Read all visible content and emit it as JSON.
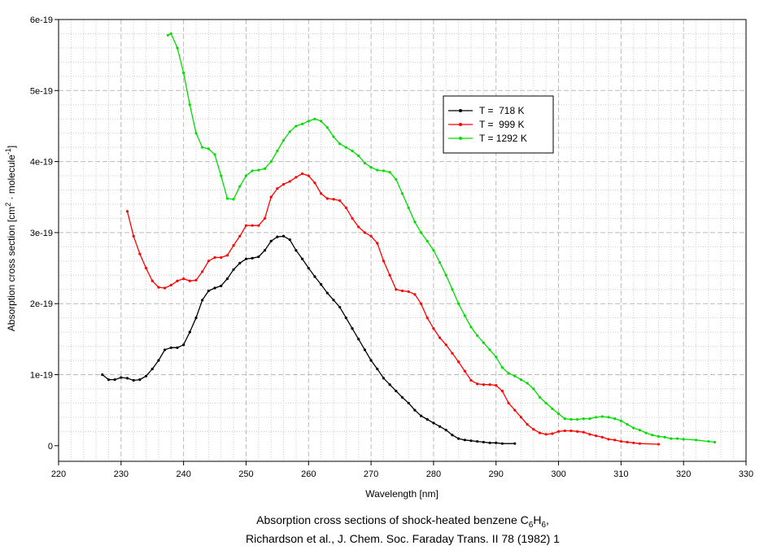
{
  "chart_data": {
    "type": "line",
    "xlabel": "Wavelength [nm]",
    "ylabel": {
      "pre": "Absorption cross section [cm",
      "sup1": "2",
      "mid": " · molecule",
      "sup2": "-1",
      "post": "]"
    },
    "caption": {
      "line1_pre": "Absorption cross sections of shock-heated benzene C",
      "line1_sub1": "6",
      "line1_mid": "H",
      "line1_sub2": "6",
      "line1_post": ",",
      "line2": "Richardson et al., J. Chem. Soc. Faraday Trans. II 78 (1982) 1"
    },
    "xlim": [
      220,
      330
    ],
    "ylim": [
      -0.22,
      6.0
    ],
    "y_unit_scale": 1e-19,
    "xticks": [
      "220",
      "230",
      "240",
      "250",
      "260",
      "270",
      "280",
      "290",
      "300",
      "310",
      "320",
      "330"
    ],
    "yticks": [
      {
        "v": 0,
        "label": "0"
      },
      {
        "v": 1,
        "label": "1e-19"
      },
      {
        "v": 2,
        "label": "2e-19"
      },
      {
        "v": 3,
        "label": "3e-19"
      },
      {
        "v": 4,
        "label": "4e-19"
      },
      {
        "v": 5,
        "label": "5e-19"
      },
      {
        "v": 6,
        "label": "6e-19"
      }
    ],
    "grid": true,
    "legend_position": "upper-center-right",
    "series": [
      {
        "name": "T =  718 K",
        "color": "#000000",
        "x": [
          227,
          228,
          229,
          230,
          231,
          232,
          233,
          234,
          235,
          236,
          237,
          238,
          239,
          240,
          241,
          242,
          243,
          244,
          245,
          246,
          247,
          248,
          249,
          250,
          251,
          252,
          253,
          254,
          255,
          256,
          257,
          258,
          259,
          260,
          261,
          262,
          263,
          264,
          265,
          266,
          267,
          268,
          269,
          270,
          271,
          272,
          273,
          274,
          275,
          276,
          277,
          278,
          279,
          280,
          281,
          282,
          283,
          284,
          285,
          286,
          287,
          288,
          289,
          290,
          291,
          293
        ],
        "y": [
          1.0,
          0.93,
          0.93,
          0.96,
          0.95,
          0.92,
          0.93,
          0.98,
          1.08,
          1.2,
          1.35,
          1.38,
          1.38,
          1.42,
          1.6,
          1.8,
          2.05,
          2.18,
          2.22,
          2.25,
          2.35,
          2.48,
          2.57,
          2.63,
          2.64,
          2.66,
          2.75,
          2.88,
          2.94,
          2.95,
          2.9,
          2.75,
          2.63,
          2.5,
          2.38,
          2.27,
          2.15,
          2.05,
          1.95,
          1.8,
          1.65,
          1.5,
          1.35,
          1.2,
          1.08,
          0.95,
          0.86,
          0.77,
          0.68,
          0.6,
          0.5,
          0.42,
          0.37,
          0.32,
          0.27,
          0.22,
          0.15,
          0.1,
          0.08,
          0.07,
          0.06,
          0.05,
          0.04,
          0.04,
          0.03,
          0.03
        ]
      },
      {
        "name": "T =  999 K",
        "color": "#ff0000",
        "x": [
          231,
          232,
          233,
          234,
          235,
          236,
          237,
          238,
          239,
          240,
          241,
          242,
          243,
          244,
          245,
          246,
          247,
          248,
          249,
          250,
          251,
          252,
          253,
          254,
          255,
          256,
          257,
          258,
          259,
          260,
          261,
          262,
          263,
          264,
          265,
          266,
          267,
          268,
          269,
          270,
          271,
          272,
          273,
          274,
          275,
          276,
          277,
          278,
          279,
          280,
          281,
          282,
          283,
          284,
          285,
          286,
          287,
          288,
          289,
          290,
          291,
          292,
          293,
          294,
          295,
          296,
          297,
          298,
          299,
          300,
          301,
          302,
          303,
          304,
          305,
          306,
          307,
          308,
          309,
          310,
          311,
          312,
          313,
          316
        ],
        "y": [
          3.3,
          2.95,
          2.7,
          2.5,
          2.32,
          2.23,
          2.22,
          2.26,
          2.32,
          2.35,
          2.32,
          2.33,
          2.45,
          2.6,
          2.65,
          2.65,
          2.68,
          2.82,
          2.95,
          3.1,
          3.1,
          3.1,
          3.2,
          3.5,
          3.62,
          3.68,
          3.72,
          3.78,
          3.83,
          3.8,
          3.7,
          3.55,
          3.48,
          3.47,
          3.45,
          3.35,
          3.2,
          3.08,
          3.0,
          2.95,
          2.85,
          2.6,
          2.4,
          2.2,
          2.18,
          2.17,
          2.13,
          2.0,
          1.8,
          1.65,
          1.52,
          1.42,
          1.3,
          1.18,
          1.05,
          0.92,
          0.87,
          0.86,
          0.86,
          0.85,
          0.77,
          0.6,
          0.5,
          0.4,
          0.3,
          0.23,
          0.18,
          0.16,
          0.17,
          0.2,
          0.21,
          0.21,
          0.2,
          0.19,
          0.16,
          0.14,
          0.12,
          0.09,
          0.08,
          0.06,
          0.05,
          0.04,
          0.03,
          0.02
        ]
      },
      {
        "name": "T = 1292 K",
        "color": "#00dd00",
        "x": [
          237.5,
          238,
          239,
          240,
          241,
          242,
          243,
          244,
          245,
          246,
          247,
          248,
          249,
          250,
          251,
          252,
          253,
          254,
          255,
          256,
          257,
          258,
          259,
          260,
          261,
          262,
          263,
          264,
          265,
          266,
          267,
          268,
          269,
          270,
          271,
          272,
          273,
          274,
          275,
          276,
          277,
          278,
          279,
          280,
          281,
          282,
          283,
          284,
          285,
          286,
          287,
          288,
          289,
          290,
          291,
          292,
          293,
          294,
          295,
          296,
          297,
          298,
          299,
          300,
          301,
          302,
          303,
          304,
          305,
          306,
          307,
          308,
          309,
          310,
          311,
          312,
          313,
          314,
          315,
          316,
          317,
          318,
          319,
          320,
          322,
          324,
          325
        ],
        "y": [
          5.78,
          5.8,
          5.6,
          5.25,
          4.8,
          4.4,
          4.2,
          4.18,
          4.1,
          3.8,
          3.48,
          3.47,
          3.65,
          3.8,
          3.87,
          3.88,
          3.9,
          4.0,
          4.15,
          4.3,
          4.42,
          4.5,
          4.53,
          4.57,
          4.6,
          4.57,
          4.48,
          4.35,
          4.25,
          4.2,
          4.15,
          4.08,
          3.98,
          3.92,
          3.88,
          3.87,
          3.85,
          3.75,
          3.55,
          3.35,
          3.15,
          3.0,
          2.88,
          2.75,
          2.58,
          2.4,
          2.2,
          2.0,
          1.83,
          1.67,
          1.55,
          1.45,
          1.35,
          1.25,
          1.1,
          1.02,
          0.98,
          0.93,
          0.88,
          0.8,
          0.68,
          0.6,
          0.52,
          0.45,
          0.38,
          0.37,
          0.37,
          0.38,
          0.38,
          0.4,
          0.41,
          0.4,
          0.38,
          0.35,
          0.3,
          0.25,
          0.22,
          0.18,
          0.15,
          0.13,
          0.12,
          0.1,
          0.1,
          0.09,
          0.08,
          0.06,
          0.05
        ]
      }
    ]
  }
}
